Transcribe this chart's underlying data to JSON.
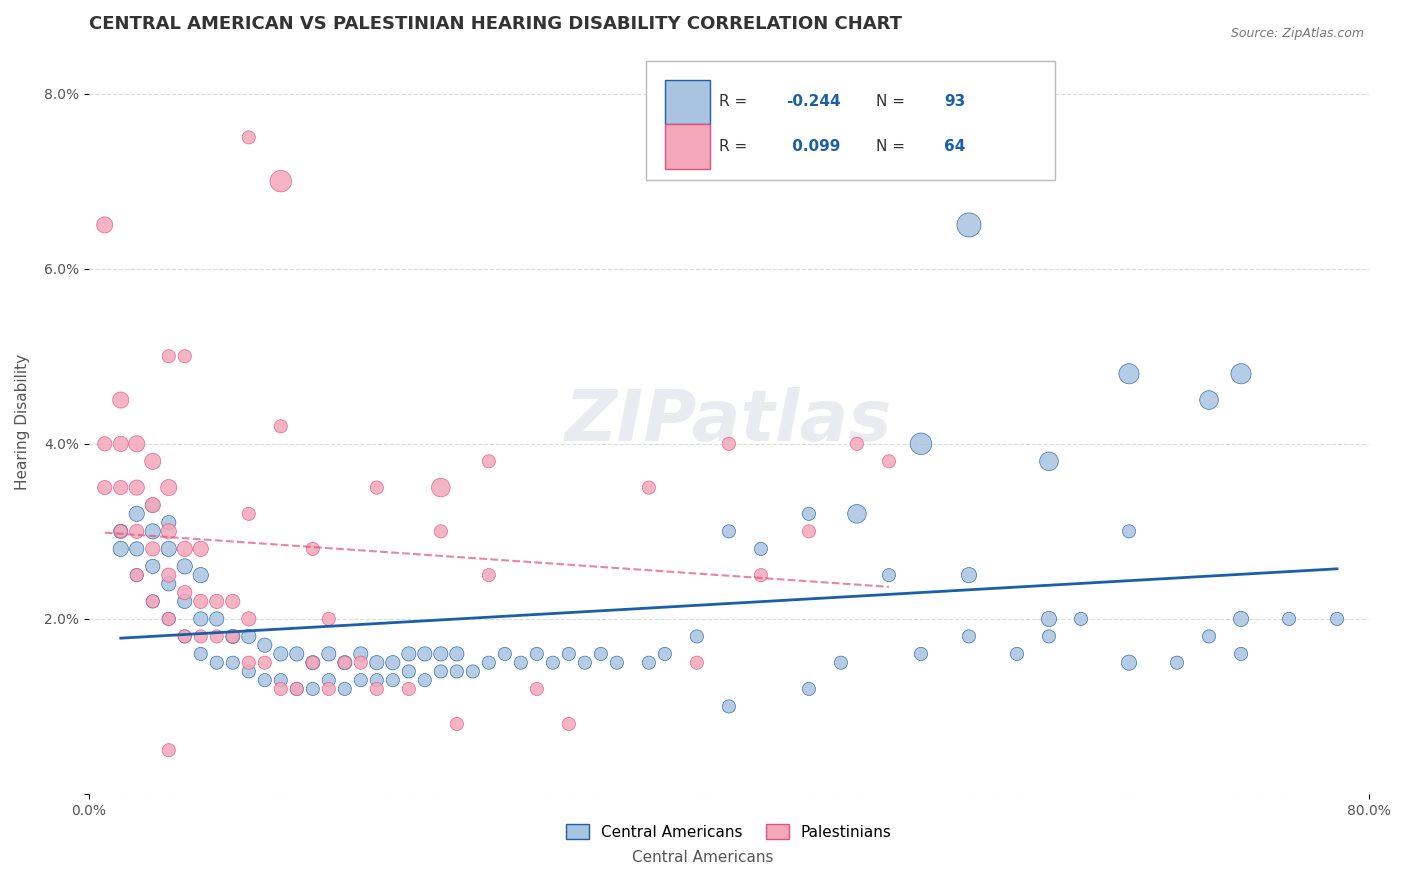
{
  "title": "CENTRAL AMERICAN VS PALESTINIAN HEARING DISABILITY CORRELATION CHART",
  "source": "Source: ZipAtlas.com",
  "xlabel": "",
  "ylabel": "Hearing Disability",
  "xlim": [
    0.0,
    0.8
  ],
  "ylim": [
    0.0,
    0.085
  ],
  "xticks": [
    0.0,
    0.1,
    0.2,
    0.3,
    0.4,
    0.5,
    0.6,
    0.7,
    0.8
  ],
  "xticklabels": [
    "0.0%",
    "",
    "",
    "",
    "",
    "",
    "",
    "",
    "80.0%"
  ],
  "yticks": [
    0.0,
    0.02,
    0.04,
    0.06,
    0.08
  ],
  "yticklabels": [
    "",
    "2.0%",
    "4.0%",
    "6.0%",
    "8.0%"
  ],
  "legend_r1": "R = -0.244",
  "legend_n1": "N = 93",
  "legend_r2": "R =  0.099",
  "legend_n2": "N = 64",
  "color_blue": "#a8c4e0",
  "color_pink": "#f4a7b9",
  "trendline_blue": "#1a5fa8",
  "trendline_pink": "#e05080",
  "grid_color": "#cccccc",
  "background_color": "#ffffff",
  "watermark": "ZIPatlas",
  "blue_x": [
    0.02,
    0.02,
    0.03,
    0.03,
    0.03,
    0.04,
    0.04,
    0.04,
    0.04,
    0.05,
    0.05,
    0.05,
    0.05,
    0.06,
    0.06,
    0.06,
    0.07,
    0.07,
    0.07,
    0.08,
    0.08,
    0.09,
    0.09,
    0.1,
    0.1,
    0.11,
    0.11,
    0.12,
    0.12,
    0.13,
    0.13,
    0.14,
    0.14,
    0.15,
    0.15,
    0.16,
    0.16,
    0.17,
    0.17,
    0.18,
    0.18,
    0.19,
    0.19,
    0.2,
    0.2,
    0.21,
    0.21,
    0.22,
    0.22,
    0.23,
    0.23,
    0.24,
    0.25,
    0.26,
    0.27,
    0.28,
    0.29,
    0.3,
    0.31,
    0.32,
    0.33,
    0.35,
    0.36,
    0.38,
    0.4,
    0.42,
    0.45,
    0.47,
    0.5,
    0.52,
    0.55,
    0.58,
    0.6,
    0.62,
    0.65,
    0.68,
    0.7,
    0.72,
    0.75,
    0.78,
    0.48,
    0.52,
    0.55,
    0.6,
    0.65,
    0.7,
    0.72,
    0.55,
    0.6,
    0.65,
    0.72,
    0.4,
    0.45
  ],
  "blue_y": [
    0.028,
    0.03,
    0.025,
    0.028,
    0.032,
    0.022,
    0.026,
    0.03,
    0.033,
    0.02,
    0.024,
    0.028,
    0.031,
    0.018,
    0.022,
    0.026,
    0.016,
    0.02,
    0.025,
    0.015,
    0.02,
    0.015,
    0.018,
    0.014,
    0.018,
    0.013,
    0.017,
    0.013,
    0.016,
    0.012,
    0.016,
    0.012,
    0.015,
    0.013,
    0.016,
    0.012,
    0.015,
    0.013,
    0.016,
    0.013,
    0.015,
    0.013,
    0.015,
    0.014,
    0.016,
    0.013,
    0.016,
    0.014,
    0.016,
    0.014,
    0.016,
    0.014,
    0.015,
    0.016,
    0.015,
    0.016,
    0.015,
    0.016,
    0.015,
    0.016,
    0.015,
    0.015,
    0.016,
    0.018,
    0.03,
    0.028,
    0.032,
    0.015,
    0.025,
    0.016,
    0.018,
    0.016,
    0.018,
    0.02,
    0.03,
    0.015,
    0.018,
    0.016,
    0.02,
    0.02,
    0.032,
    0.04,
    0.065,
    0.038,
    0.048,
    0.045,
    0.048,
    0.025,
    0.02,
    0.015,
    0.02,
    0.01,
    0.012
  ],
  "blue_s": [
    40,
    35,
    30,
    35,
    40,
    30,
    35,
    40,
    35,
    30,
    35,
    40,
    35,
    30,
    35,
    40,
    30,
    35,
    40,
    30,
    35,
    30,
    35,
    30,
    35,
    30,
    35,
    30,
    35,
    30,
    35,
    30,
    35,
    30,
    35,
    30,
    35,
    30,
    35,
    30,
    35,
    30,
    35,
    30,
    35,
    30,
    35,
    30,
    35,
    30,
    35,
    30,
    30,
    30,
    30,
    30,
    30,
    30,
    30,
    30,
    30,
    30,
    30,
    30,
    30,
    30,
    30,
    30,
    30,
    30,
    30,
    30,
    30,
    30,
    30,
    30,
    30,
    30,
    30,
    30,
    60,
    80,
    100,
    60,
    70,
    60,
    70,
    40,
    40,
    40,
    40,
    30,
    30
  ],
  "pink_x": [
    0.01,
    0.01,
    0.01,
    0.02,
    0.02,
    0.02,
    0.02,
    0.03,
    0.03,
    0.03,
    0.03,
    0.04,
    0.04,
    0.04,
    0.04,
    0.05,
    0.05,
    0.05,
    0.05,
    0.06,
    0.06,
    0.06,
    0.07,
    0.07,
    0.07,
    0.08,
    0.08,
    0.09,
    0.09,
    0.1,
    0.1,
    0.11,
    0.12,
    0.13,
    0.14,
    0.15,
    0.16,
    0.17,
    0.18,
    0.2,
    0.22,
    0.23,
    0.25,
    0.28,
    0.3,
    0.35,
    0.38,
    0.4,
    0.42,
    0.45,
    0.48,
    0.5,
    0.1,
    0.12,
    0.25,
    0.12,
    0.14,
    0.15,
    0.1,
    0.18,
    0.22,
    0.05,
    0.06,
    0.05
  ],
  "pink_y": [
    0.04,
    0.065,
    0.035,
    0.03,
    0.035,
    0.04,
    0.045,
    0.025,
    0.03,
    0.035,
    0.04,
    0.022,
    0.028,
    0.033,
    0.038,
    0.02,
    0.025,
    0.03,
    0.035,
    0.018,
    0.023,
    0.028,
    0.018,
    0.022,
    0.028,
    0.018,
    0.022,
    0.018,
    0.022,
    0.015,
    0.02,
    0.015,
    0.012,
    0.012,
    0.015,
    0.012,
    0.015,
    0.015,
    0.012,
    0.012,
    0.035,
    0.008,
    0.025,
    0.012,
    0.008,
    0.035,
    0.015,
    0.04,
    0.025,
    0.03,
    0.04,
    0.038,
    0.032,
    0.042,
    0.038,
    0.07,
    0.028,
    0.02,
    0.075,
    0.035,
    0.03,
    0.05,
    0.05,
    0.005
  ],
  "pink_s": [
    35,
    45,
    35,
    30,
    35,
    40,
    45,
    30,
    35,
    40,
    45,
    30,
    35,
    40,
    45,
    30,
    35,
    40,
    45,
    30,
    35,
    40,
    30,
    35,
    40,
    30,
    35,
    30,
    35,
    30,
    35,
    30,
    30,
    30,
    30,
    30,
    30,
    30,
    30,
    30,
    60,
    30,
    30,
    30,
    30,
    30,
    30,
    30,
    30,
    30,
    30,
    30,
    30,
    30,
    30,
    80,
    30,
    30,
    30,
    30,
    30,
    30,
    30,
    30
  ],
  "title_fontsize": 13,
  "axis_fontsize": 11,
  "tick_fontsize": 10
}
